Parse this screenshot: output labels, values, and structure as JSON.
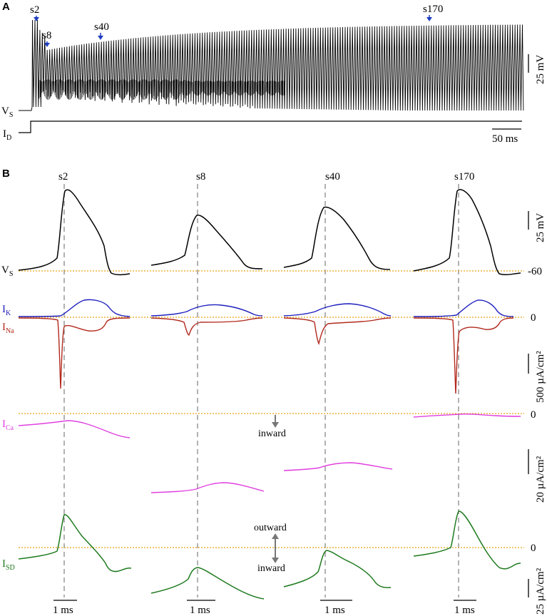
{
  "panel_a": {
    "letter": "A",
    "markers": [
      "s2",
      "s8",
      "s40",
      "s170"
    ],
    "vs_label": "V",
    "vs_sub": "S",
    "id_label": "I",
    "id_sub": "D",
    "scale_v": "25 mV",
    "scale_t": "50 ms"
  },
  "panel_b": {
    "letter": "B",
    "columns": [
      "s2",
      "s8",
      "s40",
      "s170"
    ],
    "vs_label": "V",
    "vs_sub": "S",
    "vs_level": "-60",
    "ik_label": "I",
    "ik_sub": "K",
    "ina_label": "I",
    "ina_sub": "Na",
    "current_zero": "0",
    "scale_v": "25 mV",
    "scale_ion": "500 µA/cm²",
    "ica_label": "I",
    "ica_sub": "Ca",
    "ica_zero": "0",
    "inward": "inward",
    "scale_ca": "20 µA/cm²",
    "isd_label": "I",
    "isd_sub": "SD",
    "isd_zero": "0",
    "outward": "outward",
    "inward2": "inward",
    "scale_sd": "25 µA/cm²",
    "scale_t": "1 ms"
  },
  "colors": {
    "vs": "#000000",
    "ik": "#1f1fbf",
    "ina": "#b22a1e",
    "ica": "#e040e0",
    "isd": "#1e7a1e",
    "zero_line": "#e8a317",
    "marker_arrow": "#1f3fbf",
    "guide": "#888888"
  }
}
